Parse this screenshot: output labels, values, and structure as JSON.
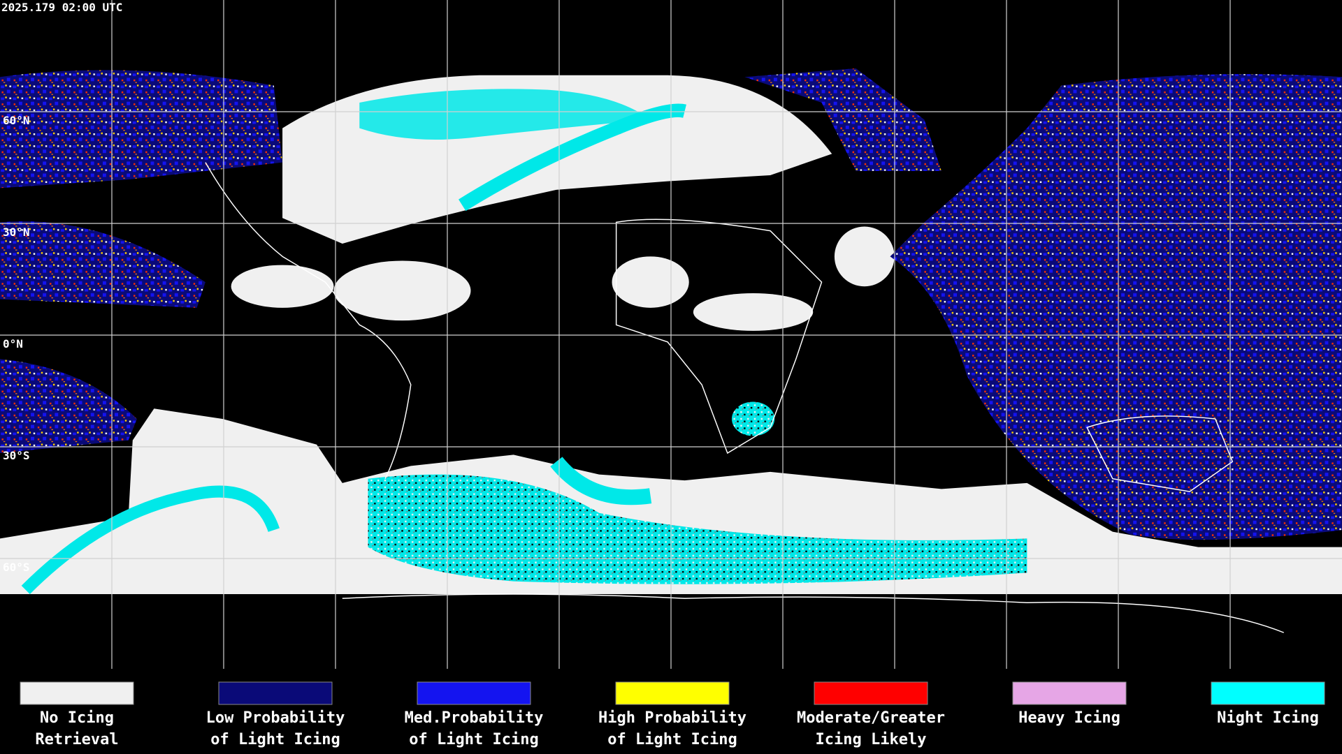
{
  "header": {
    "timestamp": "2025.179 02:00 UTC"
  },
  "map": {
    "latitude_labels": [
      "60°N",
      "30°N",
      "0°N",
      "30°S",
      "60°S"
    ]
  },
  "legend": {
    "items": [
      {
        "lines": [
          "No Icing",
          "Retrieval"
        ],
        "color": "#f0f0f0"
      },
      {
        "lines": [
          "Low Probability",
          "of Light Icing"
        ],
        "color": "#0a0a78"
      },
      {
        "lines": [
          "Med.Probability",
          "of Light Icing"
        ],
        "color": "#1414f0"
      },
      {
        "lines": [
          "High Probability",
          "of Light Icing"
        ],
        "color": "#ffff00"
      },
      {
        "lines": [
          "Moderate/Greater",
          "Icing Likely"
        ],
        "color": "#ff0000"
      },
      {
        "lines": [
          "Heavy Icing"
        ],
        "color": "#e6a6e6"
      },
      {
        "lines": [
          "Night Icing"
        ],
        "color": "#00ffff"
      }
    ]
  }
}
